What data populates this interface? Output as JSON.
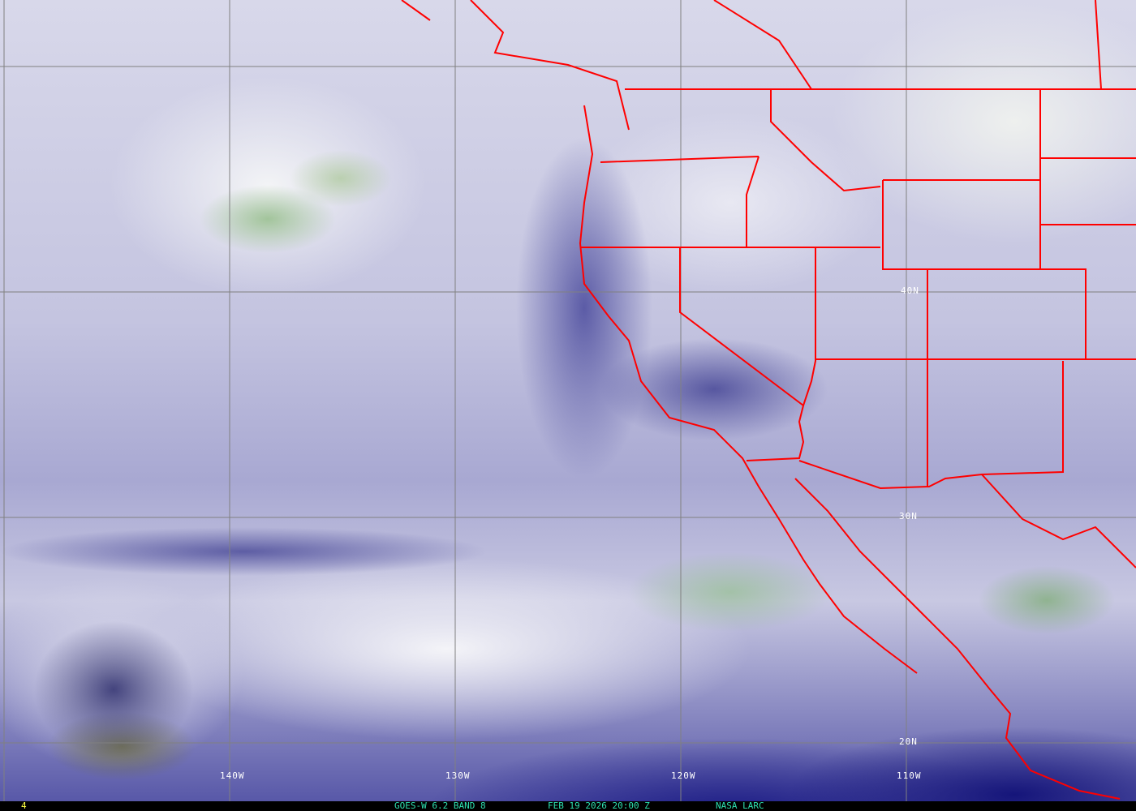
{
  "map": {
    "longitude_labels": [
      "140W",
      "130W",
      "120W",
      "110W"
    ],
    "latitude_labels": [
      "40N",
      "30N",
      "20N"
    ],
    "border_color": "#ff0000",
    "grid_color": "#808080"
  },
  "footer": {
    "frame": "4",
    "satellite": "GOES-W 6.2 BAND 8",
    "datetime": "FEB 19 2026 20:00 Z",
    "source": "NASA LARC",
    "text_color": "#2ee0b0"
  }
}
